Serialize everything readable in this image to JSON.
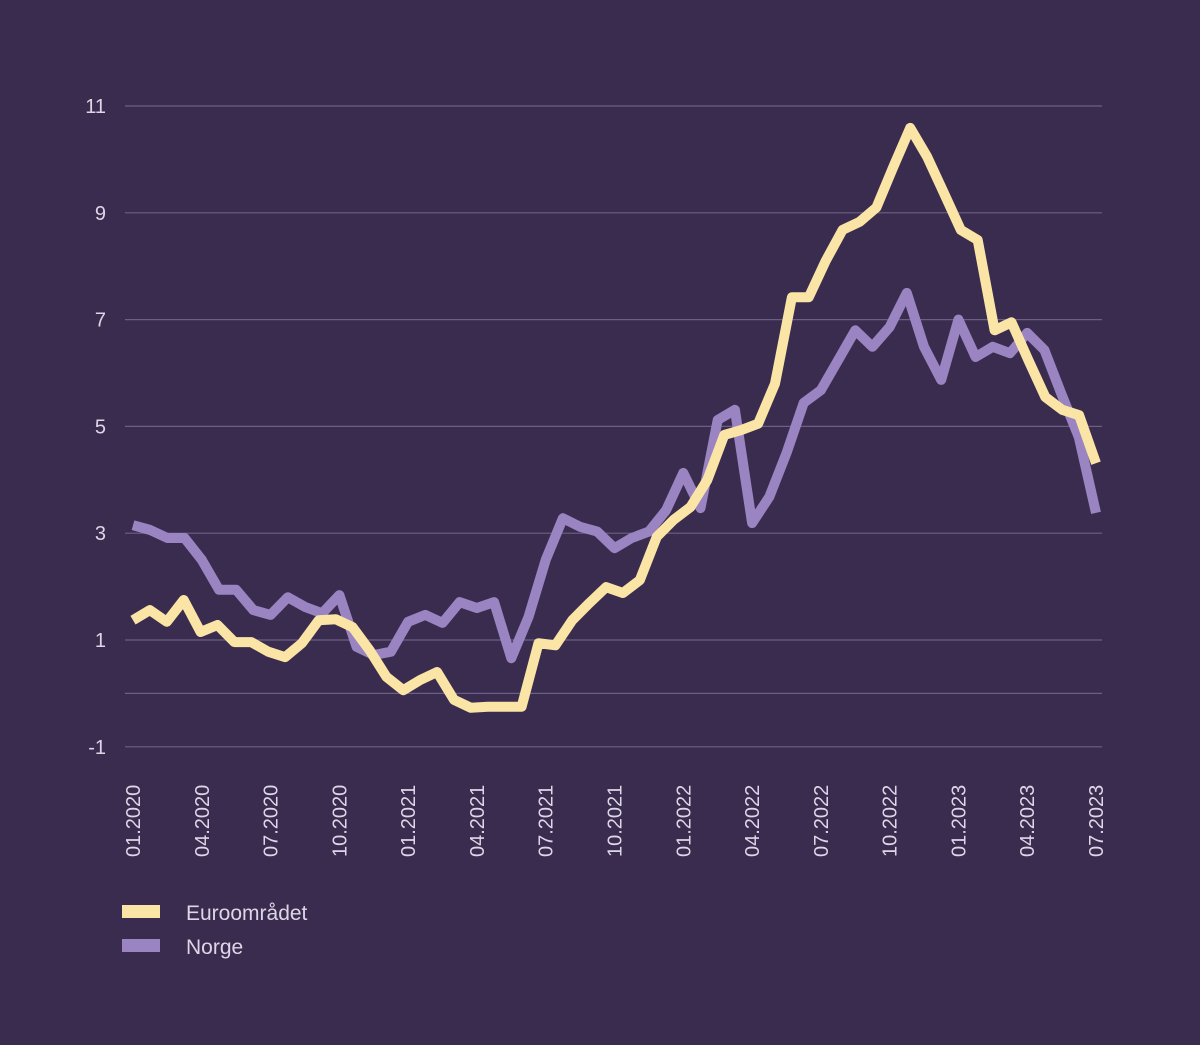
{
  "chart_data": {
    "type": "line",
    "title": "",
    "xlabel": "",
    "ylabel": "",
    "x_range": [
      "01.2020",
      "07.2023"
    ],
    "x_tick_labels": [
      "01.2020",
      "04.2020",
      "07.2020",
      "10.2020",
      "01.2021",
      "04.2021",
      "07.2021",
      "10.2021",
      "01.2022",
      "04.2022",
      "07.2022",
      "10.2022",
      "01.2023",
      "04.2023",
      "07.2023"
    ],
    "y_ticks": [
      11,
      9,
      7,
      5,
      3,
      1,
      -1
    ],
    "y_tick_labels": [
      "11",
      "9",
      "7",
      "5",
      "3",
      "1",
      "-1"
    ],
    "ylim": [
      -1,
      11
    ],
    "grid": true,
    "gridline_values": [
      11,
      9,
      7,
      5,
      3,
      1,
      0,
      -1
    ],
    "legend_position": "bottom-left",
    "series": [
      {
        "name": "Euroområdet",
        "color": "#fbe5a6",
        "values": [
          1.37,
          1.56,
          1.34,
          1.75,
          1.15,
          1.28,
          0.96,
          0.96,
          0.78,
          0.68,
          0.94,
          1.37,
          1.39,
          1.24,
          0.81,
          0.31,
          0.06,
          0.25,
          0.4,
          -0.12,
          -0.27,
          -0.25,
          -0.25,
          -0.25,
          0.94,
          0.9,
          1.37,
          1.69,
          1.99,
          1.88,
          2.12,
          2.93,
          3.25,
          3.49,
          4.0,
          4.84,
          4.93,
          5.05,
          5.8,
          7.42,
          7.42,
          8.1,
          8.68,
          8.83,
          9.1,
          9.86,
          10.59,
          10.05,
          9.37,
          8.68,
          8.49,
          6.8,
          6.95,
          6.24,
          5.55,
          5.31,
          5.21,
          4.31
        ]
      },
      {
        "name": "Norge",
        "color": "#9a84c2",
        "values": [
          3.15,
          3.06,
          2.91,
          2.91,
          2.5,
          1.94,
          1.94,
          1.56,
          1.47,
          1.8,
          1.62,
          1.5,
          1.84,
          0.87,
          0.72,
          0.78,
          1.34,
          1.47,
          1.32,
          1.71,
          1.6,
          1.71,
          0.66,
          1.43,
          2.5,
          3.28,
          3.12,
          3.03,
          2.72,
          2.91,
          3.03,
          3.43,
          4.13,
          3.47,
          5.12,
          5.31,
          3.19,
          3.68,
          4.5,
          5.44,
          5.68,
          6.24,
          6.8,
          6.49,
          6.86,
          7.5,
          6.49,
          5.87,
          7.0,
          6.3,
          6.49,
          6.37,
          6.75,
          6.43,
          5.6,
          4.8,
          3.38
        ]
      }
    ]
  },
  "colors": {
    "background": "#3a2c4e",
    "grid": "#6c5f86",
    "text": "#ddd6e8"
  }
}
